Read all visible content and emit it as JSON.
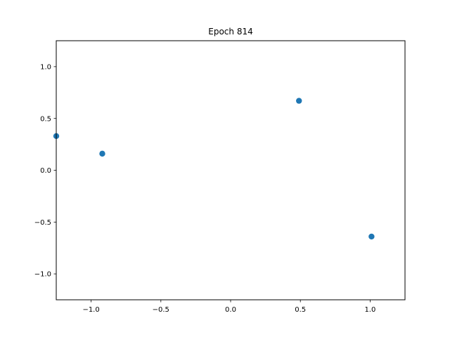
{
  "chart_data": {
    "type": "scatter",
    "title": "Epoch 814",
    "xlabel": "",
    "ylabel": "",
    "xlim": [
      -1.25,
      1.25
    ],
    "ylim": [
      -1.25,
      1.25
    ],
    "grid": false,
    "x_ticks": [
      -1.0,
      -0.5,
      0.0,
      0.5,
      1.0
    ],
    "x_tick_labels": [
      "−1.0",
      "−0.5",
      "0.0",
      "0.5",
      "1.0"
    ],
    "y_ticks": [
      1.0,
      0.5,
      0.0,
      -0.5,
      -1.0
    ],
    "y_tick_labels": [
      "1.0",
      "0.5",
      "0.0",
      "−0.5",
      "−1.0"
    ],
    "series": [
      {
        "color": "#1f77b4",
        "points": [
          {
            "x": -1.25,
            "y": 0.33
          },
          {
            "x": -0.92,
            "y": 0.16
          },
          {
            "x": 0.49,
            "y": 0.67
          },
          {
            "x": 1.01,
            "y": -0.64
          }
        ]
      }
    ]
  }
}
